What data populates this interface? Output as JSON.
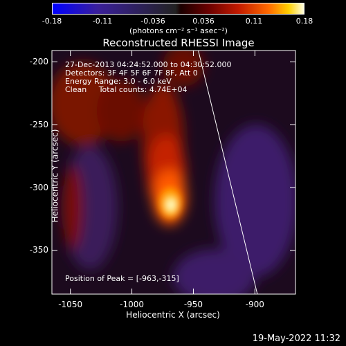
{
  "colorbar": {
    "ticks": [
      "-0.18",
      "-0.11",
      "-0.036",
      "0.036",
      "0.11",
      "0.18"
    ],
    "units": "(photons cm⁻² s⁻¹ asec⁻²)"
  },
  "chart_data": {
    "type": "heatmap",
    "title": "Reconstructed RHESSI Image",
    "xlabel": "Heliocentric X (arcsec)",
    "ylabel": "Heliocentric Y (arcsec)",
    "xlim": [
      -1065,
      -867
    ],
    "ylim": [
      -385,
      -191
    ],
    "x_ticks": [
      "-1050",
      "-1000",
      "-950",
      "-900"
    ],
    "x_tick_values": [
      -1050,
      -1000,
      -950,
      -900
    ],
    "y_ticks": [
      "-200",
      "-250",
      "-300",
      "-350"
    ],
    "y_tick_values": [
      -200,
      -250,
      -300,
      -350
    ],
    "color_range": [
      -0.18,
      0.18
    ],
    "peak": [
      -963,
      -315
    ],
    "limb_line": {
      "x": [
        -946,
        -898
      ],
      "y": [
        -191,
        -385
      ]
    }
  },
  "info": {
    "time": "27-Dec-2013 04:24:52.000 to 04:30:52.000",
    "detectors": "Detectors: 3F 4F 5F 6F 7F 8F, Att 0",
    "energy": "Energy Range: 3.0 - 6.0 keV",
    "clean": "Clean     Total counts: 4.74E+04",
    "peak_text": "Position of Peak = [-963,-315]"
  },
  "footer": {
    "date": "19-May-2022 11:32"
  }
}
